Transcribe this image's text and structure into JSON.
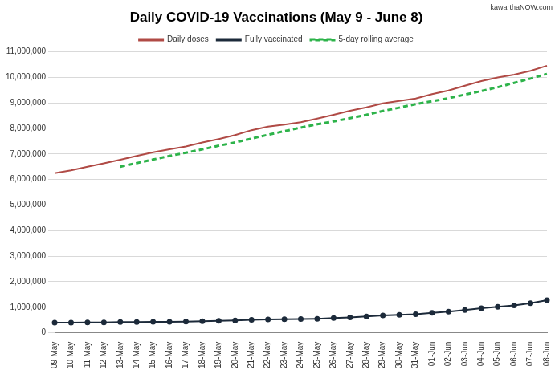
{
  "chart_data": {
    "type": "line",
    "title": "Daily COVID-19 Vaccinations (May 9 - June 8)",
    "annotations": [
      "kawarthaNOW.com"
    ],
    "categories": [
      "09-May",
      "10-May",
      "11-May",
      "12-May",
      "13-May",
      "14-May",
      "15-May",
      "16-May",
      "17-May",
      "18-May",
      "19-May",
      "20-May",
      "21-May",
      "22-May",
      "23-May",
      "24-May",
      "25-May",
      "26-May",
      "27-May",
      "28-May",
      "29-May",
      "30-May",
      "31-May",
      "01-Jun",
      "02-Jun",
      "03-Jun",
      "04-Jun",
      "05-Jun",
      "06-Jun",
      "07-Jun",
      "08-Jun"
    ],
    "series": [
      {
        "name": "Daily doses",
        "color": "#b04a45",
        "marker": "none",
        "line_style": "solid",
        "values": [
          6250000,
          6360000,
          6500000,
          6630000,
          6770000,
          6920000,
          7060000,
          7180000,
          7290000,
          7450000,
          7580000,
          7740000,
          7930000,
          8070000,
          8150000,
          8240000,
          8380000,
          8530000,
          8690000,
          8820000,
          8980000,
          9070000,
          9170000,
          9340000,
          9480000,
          9670000,
          9850000,
          9990000,
          10100000,
          10250000,
          10450000
        ]
      },
      {
        "name": "Fully vaccinated",
        "color": "#1c2a3a",
        "marker": "circle",
        "line_style": "solid",
        "values": [
          400000,
          400000,
          405000,
          405000,
          420000,
          420000,
          425000,
          430000,
          440000,
          450000,
          465000,
          485000,
          505000,
          520000,
          530000,
          535000,
          550000,
          575000,
          605000,
          640000,
          680000,
          700000,
          730000,
          780000,
          830000,
          890000,
          960000,
          1020000,
          1070000,
          1160000,
          1280000
        ]
      },
      {
        "name": "5-day rolling average",
        "color": "#2db34a",
        "marker": "none",
        "line_style": "dashed",
        "values": [
          null,
          null,
          null,
          null,
          6500000,
          6640000,
          6780000,
          6920000,
          7050000,
          7180000,
          7320000,
          7450000,
          7600000,
          7750000,
          7890000,
          8030000,
          8160000,
          8270000,
          8400000,
          8530000,
          8680000,
          8810000,
          8950000,
          9060000,
          9180000,
          9320000,
          9460000,
          9610000,
          9780000,
          9950000,
          10130000
        ]
      }
    ],
    "ylim": [
      0,
      11000000
    ],
    "yticks": [
      0,
      {
        "value": 1000000,
        "label": "1,000,000"
      },
      {
        "value": 2000000,
        "label": "2,000,000"
      },
      {
        "value": 3000000,
        "label": "3,000,000"
      },
      {
        "value": 4000000,
        "label": "4,000,000"
      },
      {
        "value": 5000000,
        "label": "5,000,000"
      },
      {
        "value": 6000000,
        "label": "6,000,000"
      },
      {
        "value": 7000000,
        "label": "7,000,000"
      },
      {
        "value": 8000000,
        "label": "8,000,000"
      },
      {
        "value": 9000000,
        "label": "9,000,000"
      },
      {
        "value": 10000000,
        "label": "10,000,000"
      },
      {
        "value": 11000000,
        "label": "11,000,000"
      }
    ],
    "grid": true,
    "legend": "top"
  }
}
